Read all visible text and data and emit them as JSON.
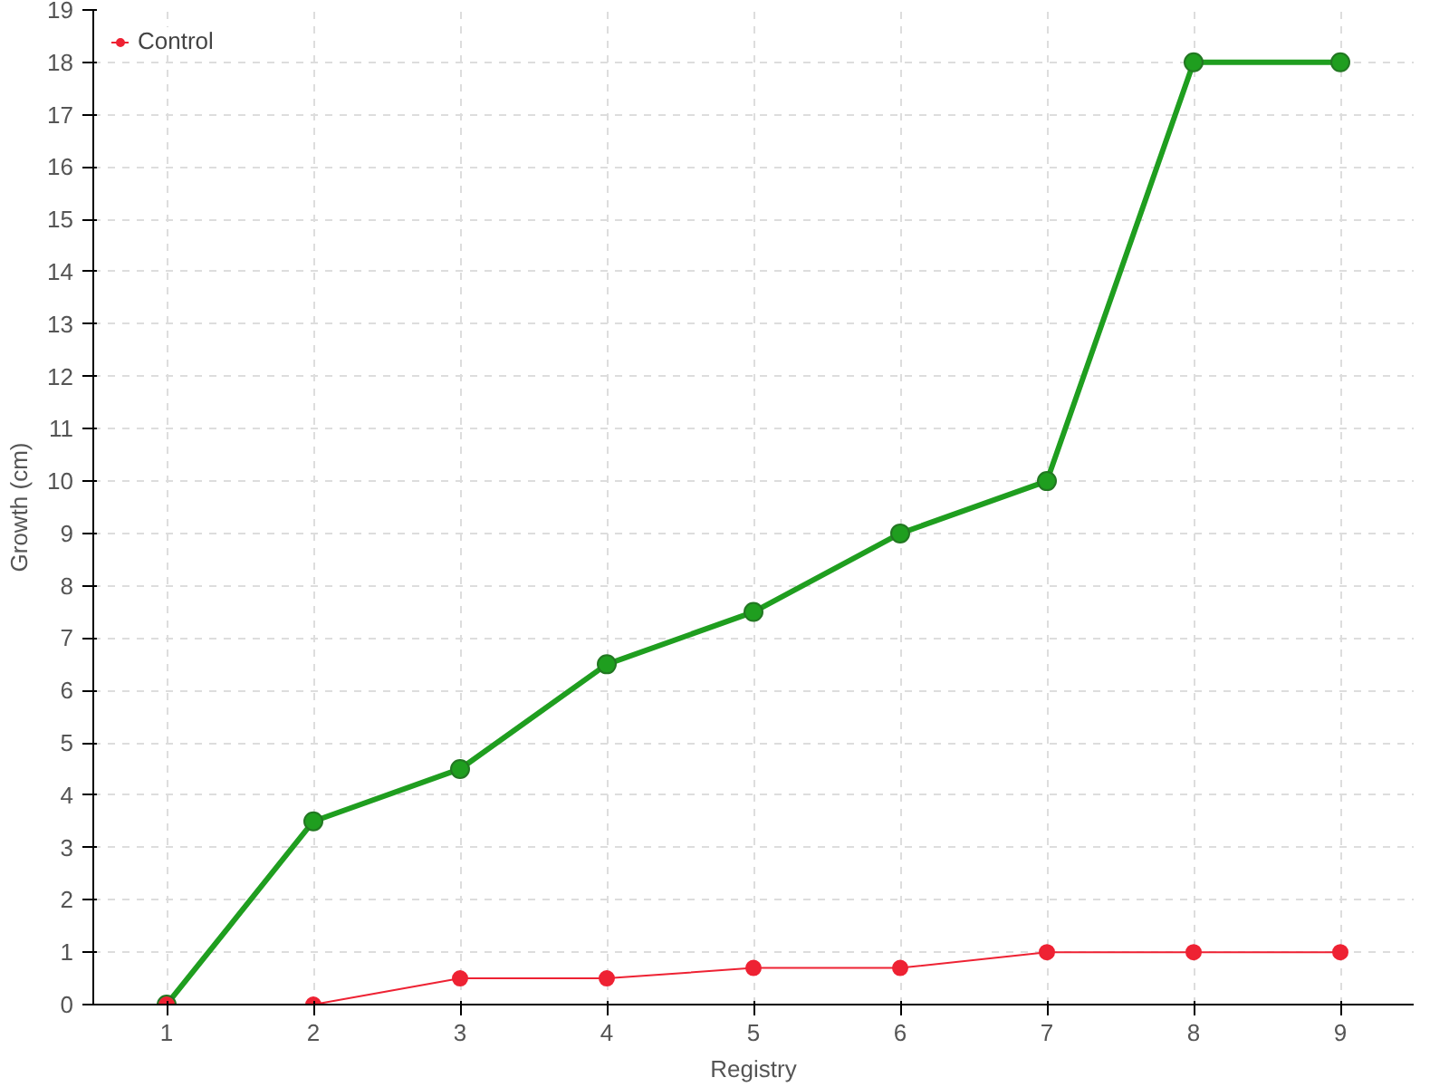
{
  "chart_data": {
    "type": "line",
    "xlabel": "Registry",
    "ylabel": "Growth (cm)",
    "x": [
      1,
      2,
      3,
      4,
      5,
      6,
      7,
      8,
      9
    ],
    "series": [
      {
        "color": "#1f9e1f",
        "values": [
          0,
          3.5,
          4.5,
          6.5,
          7.5,
          9,
          10,
          18,
          18
        ]
      },
      {
        "name": "Control",
        "color": "#ee2233",
        "values": [
          0,
          0,
          0.5,
          0.5,
          0.7,
          0.7,
          1,
          1,
          1
        ]
      }
    ],
    "xlim": [
      0.5,
      9.5
    ],
    "ylim": [
      0,
      19
    ],
    "xticks": [
      1,
      2,
      3,
      4,
      5,
      6,
      7,
      8,
      9
    ],
    "yticks": [
      0,
      1,
      2,
      3,
      4,
      5,
      6,
      7,
      8,
      9,
      10,
      11,
      12,
      13,
      14,
      15,
      16,
      17,
      18,
      19
    ],
    "grid": true,
    "legend": "top left",
    "marker": "circle",
    "line_style": "solid"
  }
}
